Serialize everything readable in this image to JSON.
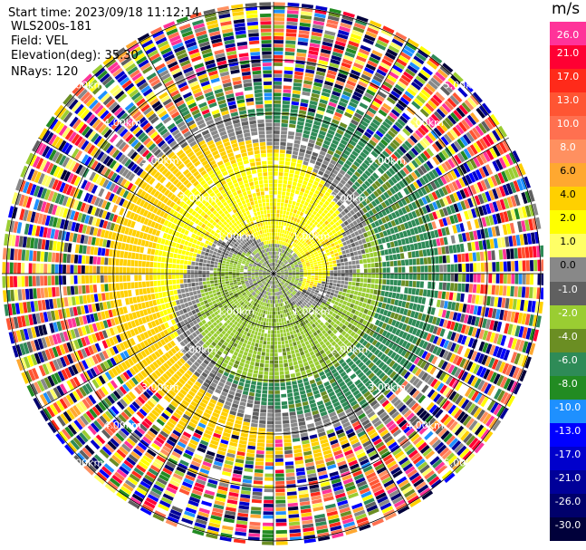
{
  "header": {
    "start_time": "Start time: 2023/09/18 11:12:14",
    "instrument": "WLS200s-181",
    "field": "Field: VEL",
    "elevation": "Elevation(deg): 35.30",
    "nrays": "NRays: 120"
  },
  "range_rings": {
    "labels_1km": "1.00km",
    "labels_2km": "2.00km",
    "labels_3km": "3.00km",
    "labels_4km": "4.00km",
    "labels_5km": "5.00km"
  },
  "colorbar": {
    "unit": "m/s",
    "ticks": [
      "26.0",
      "21.0",
      "17.0",
      "13.0",
      "10.0",
      "8.0",
      "6.0",
      "4.0",
      "2.0",
      "1.0",
      "0.0",
      "-1.0",
      "-2.0",
      "-4.0",
      "-6.0",
      "-8.0",
      "-10.0",
      "-13.0",
      "-17.0",
      "-21.0",
      "-26.0",
      "-30.0"
    ],
    "colors": [
      "#ff3399",
      "#ff0033",
      "#ff2a1a",
      "#ff5533",
      "#ff7050",
      "#ff9060",
      "#ffa830",
      "#ffd000",
      "#ffff00",
      "#ffff66",
      "#888888",
      "#606060",
      "#9acd32",
      "#6b8e23",
      "#2e8b57",
      "#228b22",
      "#1e90ff",
      "#0000ff",
      "#0000cc",
      "#000099",
      "#00006b",
      "#00003a"
    ]
  }
}
